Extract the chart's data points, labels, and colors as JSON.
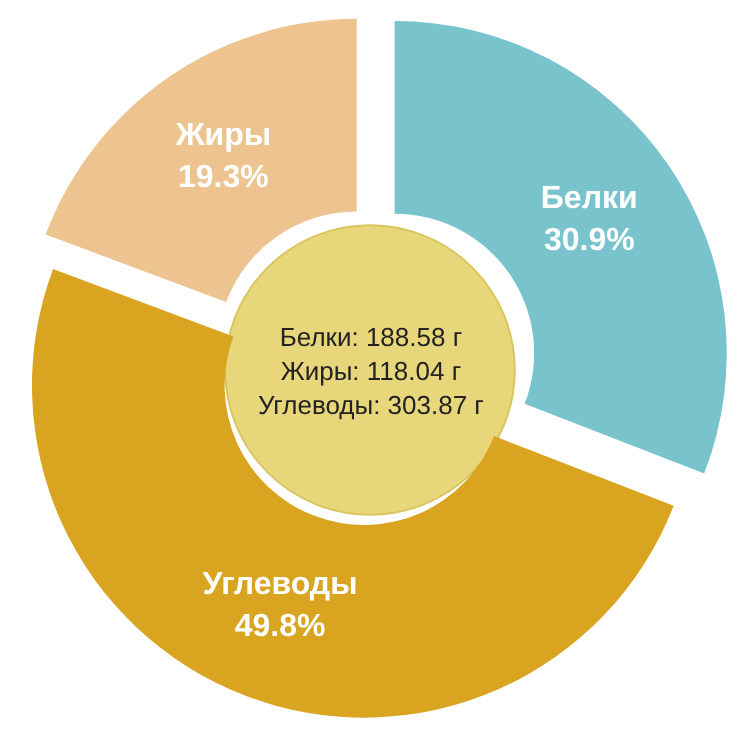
{
  "chart_data": {
    "type": "donut",
    "categories": [
      "Белки",
      "Углеводы",
      "Жиры"
    ],
    "values": [
      30.9,
      49.8,
      19.3
    ],
    "colors": [
      "#78c3cc",
      "#d9a521",
      "#edc48f"
    ],
    "value_labels": [
      "30.9%",
      "49.8%",
      "19.3%"
    ],
    "annotations": [
      "Белки: 188.58 г\nЖиры: 118.04 г\nУглеводы: 303.87 г"
    ],
    "legend": false
  }
}
